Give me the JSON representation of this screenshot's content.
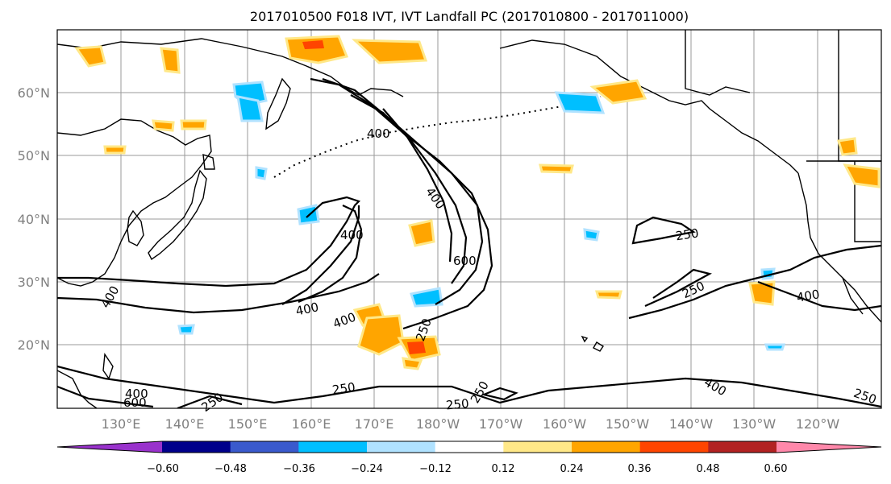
{
  "title": "2017010500 F018 IVT, IVT Landfall PC (2017010800 - 2017011000)",
  "lat_labels": [
    "20°N",
    "30°N",
    "40°N",
    "50°N",
    "60°N"
  ],
  "lon_labels": [
    "130°E",
    "140°E",
    "150°E",
    "160°E",
    "170°E",
    "180°W",
    "170°W",
    "160°W",
    "150°W",
    "140°W",
    "130°W",
    "120°W"
  ],
  "colorbar": {
    "ticks": [
      "−0.60",
      "−0.48",
      "−0.36",
      "−0.24",
      "−0.12",
      "0.12",
      "0.24",
      "0.36",
      "0.48",
      "0.60"
    ],
    "colors": [
      "#9932cc",
      "#00008b",
      "#3a5acd",
      "#00bfff",
      "#b0e2ff",
      "#ffffff",
      "#ffe888",
      "#ffa500",
      "#ff4500",
      "#b22222",
      "#ff88aa"
    ]
  },
  "contour_labels": [
    {
      "text": "400"
    },
    {
      "text": "400"
    },
    {
      "text": "400"
    },
    {
      "text": "400"
    },
    {
      "text": "400"
    },
    {
      "text": "400"
    },
    {
      "text": "400"
    },
    {
      "text": "400"
    },
    {
      "text": "400"
    },
    {
      "text": "600"
    },
    {
      "text": "600"
    },
    {
      "text": "250"
    },
    {
      "text": "250"
    },
    {
      "text": "250"
    },
    {
      "text": "250"
    },
    {
      "text": "250"
    },
    {
      "text": "250"
    },
    {
      "text": "250"
    },
    {
      "text": "250"
    }
  ],
  "colors": {
    "ocean_bg": "#ffffff",
    "contour": "#000000",
    "grid": "#9a9a9a",
    "coast": "#000000"
  }
}
